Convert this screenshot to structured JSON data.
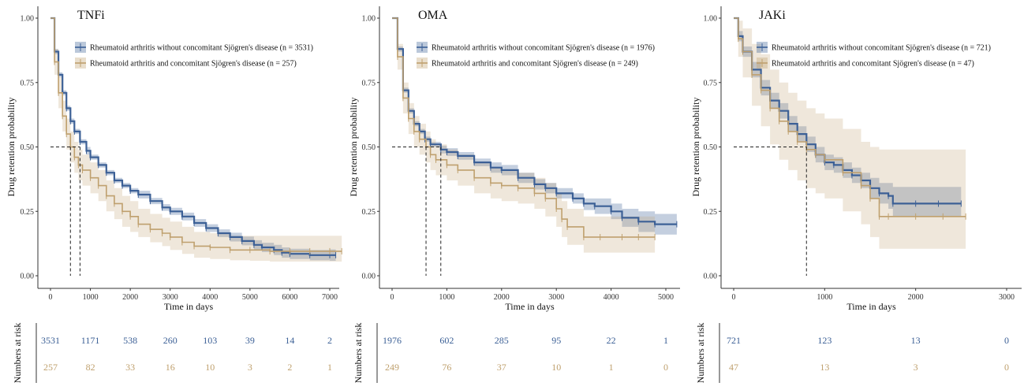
{
  "colors": {
    "without": "#3c6096",
    "with": "#bfa06e",
    "dash": "#222222",
    "axis": "#333333"
  },
  "labels": {
    "y_axis": "Drug retention probability",
    "x_axis": "Time in days",
    "risk_axis": "Numbers at risk",
    "legend_without": "Rheumatoid arthritis without concomitant Sjögren's disease",
    "legend_with": "Rheumatoid arthritis and concomitant Sjögren's disease"
  },
  "chart_data": [
    {
      "type": "line",
      "title": "TNFi",
      "xlim": [
        0,
        7300
      ],
      "ylim": [
        0,
        1
      ],
      "xticks": [
        0,
        1000,
        2000,
        3000,
        4000,
        5000,
        6000,
        7000
      ],
      "yticks": [
        0.0,
        0.25,
        0.5,
        0.75,
        1.0
      ],
      "median_x": [
        500,
        740
      ],
      "series": [
        {
          "name": "Rheumatoid arthritis without concomitant Sjögren's disease (n = 3531)",
          "group": "without",
          "x": [
            0,
            100,
            200,
            300,
            400,
            500,
            600,
            740,
            900,
            1000,
            1200,
            1400,
            1600,
            1800,
            2000,
            2200,
            2500,
            2800,
            3000,
            3300,
            3600,
            3900,
            4200,
            4500,
            4800,
            5100,
            5300,
            5600,
            5800,
            6000,
            6500,
            7000,
            7150
          ],
          "y": [
            1.0,
            0.87,
            0.78,
            0.71,
            0.65,
            0.6,
            0.56,
            0.52,
            0.485,
            0.46,
            0.43,
            0.4,
            0.37,
            0.35,
            0.33,
            0.315,
            0.29,
            0.265,
            0.25,
            0.23,
            0.205,
            0.185,
            0.165,
            0.15,
            0.135,
            0.12,
            0.11,
            0.1,
            0.09,
            0.085,
            0.08,
            0.08,
            0.08
          ],
          "ci_lower": [
            1.0,
            0.86,
            0.77,
            0.7,
            0.64,
            0.59,
            0.55,
            0.51,
            0.47,
            0.45,
            0.42,
            0.39,
            0.36,
            0.34,
            0.32,
            0.3,
            0.278,
            0.252,
            0.236,
            0.215,
            0.19,
            0.17,
            0.15,
            0.133,
            0.118,
            0.102,
            0.092,
            0.08,
            0.07,
            0.065,
            0.06,
            0.058,
            0.058
          ],
          "ci_upper": [
            1.0,
            0.88,
            0.79,
            0.72,
            0.66,
            0.61,
            0.57,
            0.53,
            0.5,
            0.47,
            0.44,
            0.41,
            0.38,
            0.36,
            0.34,
            0.33,
            0.302,
            0.278,
            0.264,
            0.245,
            0.22,
            0.2,
            0.18,
            0.167,
            0.152,
            0.138,
            0.128,
            0.12,
            0.11,
            0.105,
            0.1,
            0.102,
            0.102
          ]
        },
        {
          "name": "Rheumatoid arthritis and concomitant Sjögren's disease (n = 257)",
          "group": "with",
          "x": [
            0,
            100,
            200,
            300,
            400,
            500,
            600,
            700,
            800,
            1000,
            1200,
            1400,
            1600,
            1800,
            2000,
            2200,
            2500,
            2800,
            3000,
            3300,
            3600,
            4000,
            4500,
            5000,
            5500,
            6000,
            6500,
            7000,
            7300
          ],
          "y": [
            1.0,
            0.83,
            0.71,
            0.62,
            0.55,
            0.5,
            0.46,
            0.43,
            0.41,
            0.38,
            0.35,
            0.31,
            0.28,
            0.25,
            0.23,
            0.2,
            0.18,
            0.165,
            0.15,
            0.13,
            0.115,
            0.11,
            0.1,
            0.1,
            0.095,
            0.095,
            0.095,
            0.095,
            0.095
          ],
          "ci_lower": [
            1.0,
            0.78,
            0.65,
            0.56,
            0.49,
            0.44,
            0.4,
            0.37,
            0.35,
            0.32,
            0.29,
            0.25,
            0.22,
            0.19,
            0.17,
            0.15,
            0.13,
            0.115,
            0.1,
            0.085,
            0.07,
            0.065,
            0.06,
            0.058,
            0.055,
            0.055,
            0.055,
            0.055,
            0.055
          ],
          "ci_upper": [
            1.0,
            0.88,
            0.77,
            0.68,
            0.61,
            0.56,
            0.52,
            0.49,
            0.47,
            0.44,
            0.41,
            0.37,
            0.34,
            0.31,
            0.29,
            0.26,
            0.24,
            0.225,
            0.21,
            0.19,
            0.17,
            0.165,
            0.155,
            0.155,
            0.155,
            0.155,
            0.155,
            0.155,
            0.155
          ]
        }
      ],
      "risk_times": [
        0,
        1000,
        2000,
        3000,
        4000,
        5000,
        6000,
        7000
      ],
      "risk": {
        "without": [
          3531,
          1171,
          538,
          260,
          103,
          39,
          14,
          2
        ],
        "with": [
          257,
          82,
          33,
          16,
          10,
          3,
          2,
          1
        ]
      }
    },
    {
      "type": "line",
      "title": "OMA",
      "xlim": [
        0,
        5300
      ],
      "ylim": [
        0,
        1
      ],
      "xticks": [
        0,
        1000,
        2000,
        3000,
        4000,
        5000
      ],
      "yticks": [
        0.0,
        0.25,
        0.5,
        0.75,
        1.0
      ],
      "median_x": [
        620,
        890
      ],
      "series": [
        {
          "name": "Rheumatoid arthritis without concomitant Sjögren's disease (n = 1976)",
          "group": "without",
          "x": [
            0,
            100,
            200,
            300,
            400,
            500,
            600,
            700,
            890,
            1000,
            1200,
            1500,
            1800,
            2000,
            2300,
            2600,
            2800,
            3000,
            3300,
            3500,
            3700,
            4000,
            4200,
            4500,
            4800,
            5200
          ],
          "y": [
            1.0,
            0.88,
            0.72,
            0.64,
            0.59,
            0.56,
            0.53,
            0.51,
            0.49,
            0.48,
            0.465,
            0.44,
            0.42,
            0.41,
            0.38,
            0.355,
            0.34,
            0.32,
            0.3,
            0.28,
            0.27,
            0.25,
            0.225,
            0.21,
            0.2,
            0.2
          ],
          "ci_lower": [
            1.0,
            0.87,
            0.71,
            0.63,
            0.58,
            0.55,
            0.52,
            0.5,
            0.475,
            0.465,
            0.45,
            0.425,
            0.4,
            0.39,
            0.36,
            0.335,
            0.32,
            0.3,
            0.28,
            0.255,
            0.24,
            0.22,
            0.19,
            0.17,
            0.16,
            0.16
          ],
          "ci_upper": [
            1.0,
            0.89,
            0.73,
            0.65,
            0.6,
            0.57,
            0.54,
            0.52,
            0.505,
            0.495,
            0.48,
            0.455,
            0.44,
            0.43,
            0.4,
            0.375,
            0.36,
            0.34,
            0.32,
            0.3,
            0.3,
            0.28,
            0.26,
            0.25,
            0.24,
            0.24
          ]
        },
        {
          "name": "Rheumatoid arthritis and concomitant Sjögren's disease (n = 249)",
          "group": "with",
          "x": [
            0,
            100,
            200,
            300,
            400,
            500,
            620,
            700,
            800,
            1000,
            1200,
            1500,
            1800,
            2000,
            2300,
            2600,
            2800,
            3000,
            3100,
            3200,
            3500,
            3800,
            4200,
            4500,
            4800
          ],
          "y": [
            1.0,
            0.85,
            0.69,
            0.61,
            0.56,
            0.53,
            0.5,
            0.47,
            0.45,
            0.43,
            0.41,
            0.38,
            0.36,
            0.35,
            0.34,
            0.32,
            0.3,
            0.26,
            0.22,
            0.19,
            0.15,
            0.15,
            0.15,
            0.15,
            0.15
          ],
          "ci_lower": [
            1.0,
            0.8,
            0.63,
            0.55,
            0.5,
            0.47,
            0.44,
            0.41,
            0.39,
            0.37,
            0.35,
            0.32,
            0.3,
            0.29,
            0.28,
            0.26,
            0.23,
            0.19,
            0.15,
            0.12,
            0.09,
            0.09,
            0.09,
            0.09,
            0.09
          ],
          "ci_upper": [
            1.0,
            0.9,
            0.75,
            0.67,
            0.62,
            0.59,
            0.56,
            0.53,
            0.51,
            0.49,
            0.47,
            0.44,
            0.42,
            0.41,
            0.4,
            0.38,
            0.36,
            0.32,
            0.29,
            0.26,
            0.23,
            0.23,
            0.23,
            0.23,
            0.23
          ]
        }
      ],
      "risk_times": [
        0,
        1000,
        2000,
        3000,
        4000,
        5000
      ],
      "risk": {
        "without": [
          1976,
          602,
          285,
          95,
          22,
          1
        ],
        "with": [
          249,
          76,
          37,
          10,
          1,
          0
        ]
      }
    },
    {
      "type": "line",
      "title": "JAKi",
      "xlim": [
        0,
        3100
      ],
      "ylim": [
        0,
        1
      ],
      "xticks": [
        0,
        1000,
        2000,
        3000
      ],
      "yticks": [
        0.0,
        0.25,
        0.5,
        0.75,
        1.0
      ],
      "median_x": [
        800
      ],
      "series": [
        {
          "name": "Rheumatoid arthritis without concomitant Sjögren's disease (n = 721)",
          "group": "without",
          "x": [
            0,
            50,
            100,
            200,
            300,
            400,
            500,
            600,
            700,
            800,
            900,
            1000,
            1100,
            1200,
            1300,
            1400,
            1500,
            1600,
            1700,
            1750,
            2000,
            2250,
            2500
          ],
          "y": [
            1.0,
            0.93,
            0.87,
            0.8,
            0.73,
            0.68,
            0.64,
            0.59,
            0.55,
            0.51,
            0.47,
            0.44,
            0.43,
            0.41,
            0.39,
            0.37,
            0.34,
            0.32,
            0.31,
            0.28,
            0.28,
            0.28,
            0.28
          ],
          "ci_lower": [
            1.0,
            0.91,
            0.85,
            0.77,
            0.7,
            0.65,
            0.61,
            0.56,
            0.52,
            0.48,
            0.44,
            0.41,
            0.4,
            0.38,
            0.36,
            0.34,
            0.3,
            0.28,
            0.26,
            0.23,
            0.23,
            0.23,
            0.23
          ],
          "ci_upper": [
            1.0,
            0.95,
            0.89,
            0.83,
            0.76,
            0.71,
            0.67,
            0.62,
            0.58,
            0.54,
            0.5,
            0.47,
            0.46,
            0.44,
            0.42,
            0.4,
            0.38,
            0.36,
            0.36,
            0.345,
            0.345,
            0.345,
            0.345
          ]
        },
        {
          "name": "Rheumatoid arthritis and concomitant Sjögren's disease (n = 47)",
          "group": "with",
          "x": [
            0,
            50,
            100,
            200,
            300,
            400,
            500,
            600,
            700,
            800,
            900,
            1000,
            1200,
            1400,
            1500,
            1600,
            1700,
            2000,
            2300,
            2550
          ],
          "y": [
            1.0,
            0.92,
            0.87,
            0.78,
            0.72,
            0.65,
            0.6,
            0.56,
            0.52,
            0.49,
            0.47,
            0.45,
            0.4,
            0.35,
            0.3,
            0.23,
            0.23,
            0.23,
            0.23,
            0.23
          ],
          "ci_lower": [
            1.0,
            0.85,
            0.77,
            0.66,
            0.58,
            0.51,
            0.45,
            0.41,
            0.37,
            0.34,
            0.32,
            0.3,
            0.25,
            0.2,
            0.15,
            0.105,
            0.105,
            0.105,
            0.105,
            0.105
          ],
          "ci_upper": [
            1.0,
            0.99,
            0.96,
            0.9,
            0.86,
            0.8,
            0.75,
            0.71,
            0.68,
            0.65,
            0.63,
            0.61,
            0.57,
            0.52,
            0.5,
            0.49,
            0.49,
            0.49,
            0.49,
            0.49
          ]
        }
      ],
      "risk_times": [
        0,
        1000,
        2000,
        3000
      ],
      "risk": {
        "without": [
          721,
          123,
          13,
          0
        ],
        "with": [
          47,
          13,
          3,
          0
        ]
      }
    }
  ]
}
